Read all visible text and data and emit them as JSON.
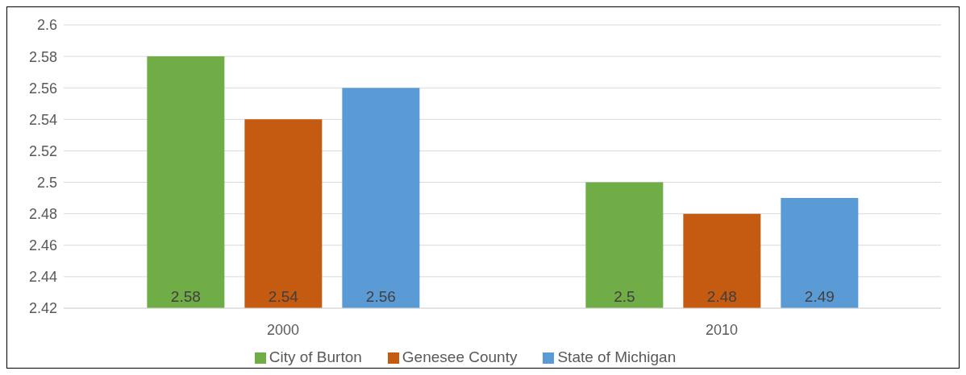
{
  "chart_data": {
    "type": "bar",
    "categories": [
      "2000",
      "2010"
    ],
    "series": [
      {
        "name": "City of Burton",
        "color": "#70ad47",
        "values": [
          2.58,
          2.5
        ]
      },
      {
        "name": "Genesee County",
        "color": "#c55a11",
        "values": [
          2.54,
          2.48
        ]
      },
      {
        "name": "State of Michigan",
        "color": "#5b9bd5",
        "values": [
          2.56,
          2.49
        ]
      }
    ],
    "ylim": [
      2.42,
      2.6
    ],
    "yticks": [
      2.42,
      2.44,
      2.46,
      2.48,
      2.5,
      2.52,
      2.54,
      2.56,
      2.58,
      2.6
    ],
    "grid": "y",
    "legend": "bottom",
    "data_labels": true
  }
}
